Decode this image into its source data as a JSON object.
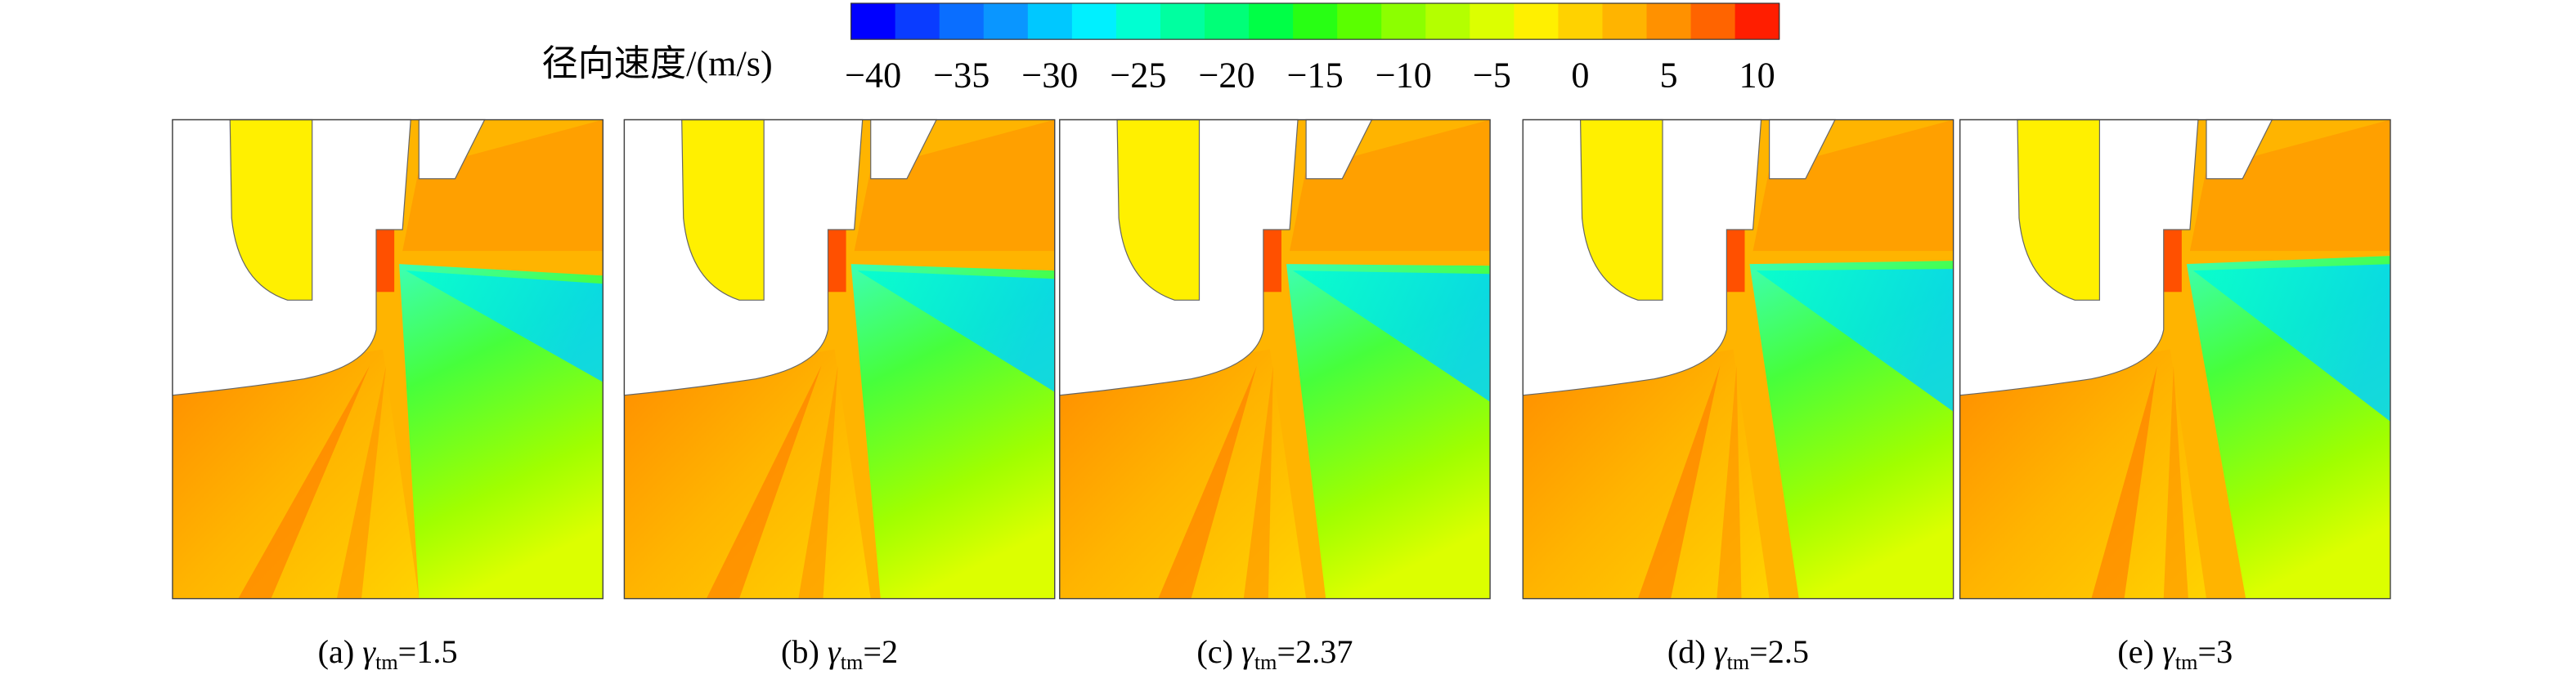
{
  "colorbar": {
    "label": "径向速度/(m/s)",
    "ticks": [
      "−40",
      "−35",
      "−30",
      "−25",
      "−20",
      "−15",
      "−10",
      "−5",
      "0",
      "5",
      "10"
    ],
    "colors": [
      "#0000ff",
      "#0a3cff",
      "#0a6eff",
      "#0a96ff",
      "#00c8ff",
      "#00f0ff",
      "#00ffd2",
      "#00ffa0",
      "#00ff78",
      "#00ff46",
      "#28ff14",
      "#5aff00",
      "#8cff00",
      "#b4ff00",
      "#dcff00",
      "#fff000",
      "#ffd200",
      "#ffb400",
      "#ff9100",
      "#ff6400",
      "#ff1e00"
    ]
  },
  "panels": [
    {
      "label": "(a)",
      "symbol": "γ",
      "subscript": "tm",
      "value": "=1.5"
    },
    {
      "label": "(b)",
      "symbol": "γ",
      "subscript": "tm",
      "value": "=2"
    },
    {
      "label": "(c)",
      "symbol": "γ",
      "subscript": "tm",
      "value": "=2.37"
    },
    {
      "label": "(d)",
      "symbol": "γ",
      "subscript": "tm",
      "value": "=2.5"
    },
    {
      "label": "(e)",
      "symbol": "γ",
      "subscript": "tm",
      "value": "=3"
    }
  ]
}
